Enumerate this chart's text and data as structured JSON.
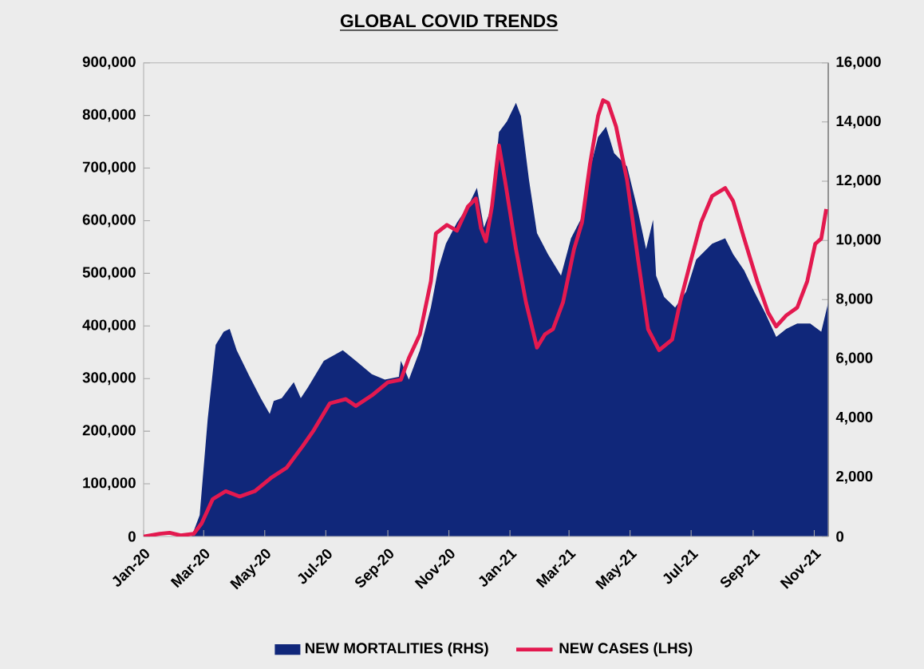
{
  "chart_data": {
    "type": "line",
    "title": "GLOBAL COVID TRENDS",
    "xlim": [
      "2020-01-01",
      "2021-11-15"
    ],
    "xticks": [
      {
        "value": "2020-01-01",
        "label": "Jan-20"
      },
      {
        "value": "2020-03-01",
        "label": "Mar-20"
      },
      {
        "value": "2020-05-01",
        "label": "May-20"
      },
      {
        "value": "2020-07-01",
        "label": "Jul-20"
      },
      {
        "value": "2020-09-01",
        "label": "Sep-20"
      },
      {
        "value": "2020-11-01",
        "label": "Nov-20"
      },
      {
        "value": "2021-01-01",
        "label": "Jan-21"
      },
      {
        "value": "2021-03-01",
        "label": "Mar-21"
      },
      {
        "value": "2021-05-01",
        "label": "May-21"
      },
      {
        "value": "2021-07-01",
        "label": "Jul-21"
      },
      {
        "value": "2021-09-01",
        "label": "Sep-21"
      },
      {
        "value": "2021-11-01",
        "label": "Nov-21"
      }
    ],
    "ylim": [
      0,
      900000
    ],
    "yticks": [
      0,
      {
        "value": 100000,
        "label": "100,000"
      },
      {
        "value": 200000,
        "label": "200,000"
      },
      {
        "value": 300000,
        "label": "300,000"
      },
      {
        "value": 400000,
        "label": "400,000"
      },
      {
        "value": 500000,
        "label": "500,000"
      },
      {
        "value": 600000,
        "label": "600,000"
      },
      {
        "value": 700000,
        "label": "700,000"
      },
      {
        "value": 800000,
        "label": "800,000"
      },
      {
        "value": 900000,
        "label": "900,000"
      }
    ],
    "y2lim": [
      0,
      16000
    ],
    "y2ticks": [
      0,
      {
        "value": 2000,
        "label": "2,000"
      },
      {
        "value": 4000,
        "label": "4,000"
      },
      {
        "value": 6000,
        "label": "6,000"
      },
      {
        "value": 8000,
        "label": "8,000"
      },
      {
        "value": 10000,
        "label": "10,000"
      },
      {
        "value": 12000,
        "label": "12,000"
      },
      {
        "value": 14000,
        "label": "14,000"
      },
      {
        "value": 16000,
        "label": "16,000"
      }
    ],
    "legend": "bottom",
    "series": [
      {
        "name": "NEW MORTALITIES (RHS)",
        "type": "area",
        "axis": "y2",
        "color": "#10277a",
        "x": [
          "2020-01-01",
          "2020-02-18",
          "2020-02-26",
          "2020-03-05",
          "2020-03-13",
          "2020-03-21",
          "2020-03-27",
          "2020-04-03",
          "2020-04-16",
          "2020-04-27",
          "2020-05-06",
          "2020-05-10",
          "2020-05-18",
          "2020-05-30",
          "2020-06-06",
          "2020-06-13",
          "2020-06-29",
          "2020-07-18",
          "2020-07-31",
          "2020-08-16",
          "2020-08-29",
          "2020-09-12",
          "2020-09-14",
          "2020-09-22",
          "2020-10-03",
          "2020-10-14",
          "2020-10-21",
          "2020-10-29",
          "2020-11-09",
          "2020-11-20",
          "2020-11-29",
          "2020-12-06",
          "2020-12-14",
          "2020-12-21",
          "2020-12-29",
          "2021-01-07",
          "2021-01-12",
          "2021-01-20",
          "2021-01-28",
          "2021-02-08",
          "2021-02-21",
          "2021-03-03",
          "2021-03-14",
          "2021-03-22",
          "2021-03-30",
          "2021-04-07",
          "2021-04-15",
          "2021-04-28",
          "2021-05-09",
          "2021-05-17",
          "2021-05-24",
          "2021-05-27",
          "2021-06-04",
          "2021-06-15",
          "2021-06-26",
          "2021-07-06",
          "2021-07-22",
          "2021-08-04",
          "2021-08-12",
          "2021-08-23",
          "2021-09-02",
          "2021-09-13",
          "2021-09-24",
          "2021-10-04",
          "2021-10-15",
          "2021-10-28",
          "2021-11-08",
          "2021-11-15"
        ],
        "values": [
          0,
          0,
          720,
          3960,
          6470,
          6920,
          7010,
          6290,
          5390,
          4670,
          4140,
          4580,
          4670,
          5210,
          4670,
          5030,
          5930,
          6290,
          5930,
          5480,
          5300,
          5390,
          5930,
          5300,
          6290,
          7730,
          8990,
          9890,
          10600,
          11150,
          11780,
          10430,
          11150,
          13660,
          14020,
          14650,
          14200,
          12050,
          10250,
          9530,
          8810,
          10070,
          10790,
          12410,
          13490,
          13840,
          12950,
          12500,
          10970,
          9710,
          10700,
          8810,
          8090,
          7730,
          8270,
          9350,
          9890,
          10070,
          9530,
          8990,
          8270,
          7550,
          6740,
          7010,
          7190,
          7190,
          6920,
          7910
        ]
      },
      {
        "name": "NEW CASES (LHS)",
        "type": "line",
        "color": "#e3194f",
        "x": [
          "2020-01-01",
          "2020-01-17",
          "2020-01-27",
          "2020-02-07",
          "2020-02-20",
          "2020-02-28",
          "2020-03-10",
          "2020-03-23",
          "2020-04-06",
          "2020-04-21",
          "2020-05-07",
          "2020-05-23",
          "2020-06-08",
          "2020-06-19",
          "2020-07-05",
          "2020-07-21",
          "2020-07-31",
          "2020-08-16",
          "2020-09-01",
          "2020-09-14",
          "2020-09-22",
          "2020-10-03",
          "2020-10-14",
          "2020-10-19",
          "2020-10-30",
          "2020-11-09",
          "2020-11-20",
          "2020-11-28",
          "2020-12-03",
          "2020-12-08",
          "2020-12-14",
          "2020-12-21",
          "2020-12-27",
          "2021-01-07",
          "2021-01-17",
          "2021-01-28",
          "2021-02-05",
          "2021-02-13",
          "2021-02-23",
          "2021-03-06",
          "2021-03-14",
          "2021-03-22",
          "2021-03-30",
          "2021-04-04",
          "2021-04-09",
          "2021-04-17",
          "2021-04-28",
          "2021-05-09",
          "2021-05-19",
          "2021-05-30",
          "2021-06-12",
          "2021-06-20",
          "2021-07-01",
          "2021-07-11",
          "2021-07-22",
          "2021-08-04",
          "2021-08-12",
          "2021-08-23",
          "2021-09-05",
          "2021-09-16",
          "2021-09-24",
          "2021-10-04",
          "2021-10-15",
          "2021-10-25",
          "2021-11-02",
          "2021-11-08",
          "2021-11-13"
        ],
        "values": [
          0,
          5000,
          7000,
          2000,
          5000,
          25000,
          71000,
          86000,
          76000,
          86000,
          111000,
          131000,
          172000,
          202000,
          253000,
          261000,
          248000,
          268000,
          293000,
          298000,
          339000,
          384000,
          485000,
          576000,
          592000,
          581000,
          627000,
          642000,
          586000,
          561000,
          627000,
          743000,
          677000,
          546000,
          445000,
          359000,
          384000,
          394000,
          445000,
          546000,
          597000,
          708000,
          799000,
          829000,
          824000,
          779000,
          677000,
          526000,
          394000,
          354000,
          374000,
          445000,
          526000,
          597000,
          647000,
          662000,
          637000,
          566000,
          485000,
          425000,
          399000,
          420000,
          435000,
          485000,
          556000,
          566000,
          622000
        ]
      }
    ]
  }
}
